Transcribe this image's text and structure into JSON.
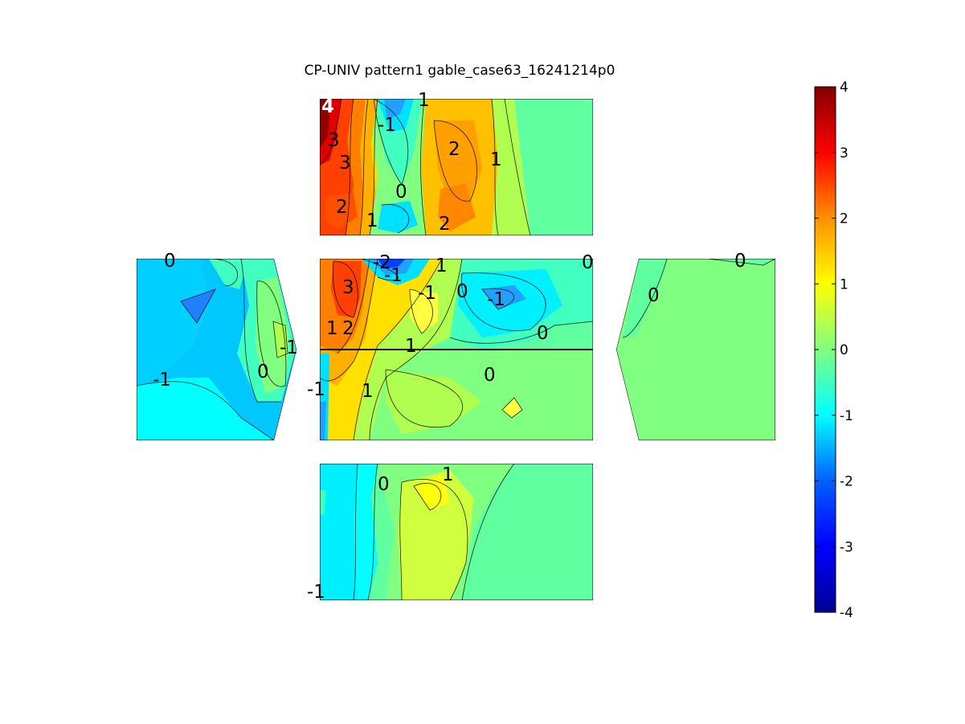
{
  "chart_data": {
    "type": "heatmap",
    "title": "CP-UNIV pattern1 gable_case63_16241214p0",
    "colorbar": {
      "colormap": "jet",
      "range": [
        -4,
        4
      ],
      "ticks": [
        "-4",
        "-3",
        "-2",
        "-1",
        "0",
        "1",
        "2",
        "3",
        "4"
      ]
    },
    "panels": [
      {
        "name": "top",
        "contour_labels": [
          {
            "text": "4",
            "highlight": true
          },
          {
            "text": "-1"
          },
          {
            "text": "1"
          },
          {
            "text": "3"
          },
          {
            "text": "3"
          },
          {
            "text": "2"
          },
          {
            "text": "1"
          },
          {
            "text": "0"
          },
          {
            "text": "2"
          },
          {
            "text": "1"
          },
          {
            "text": "2"
          }
        ]
      },
      {
        "name": "left",
        "contour_labels": [
          {
            "text": "0"
          },
          {
            "text": "-1"
          },
          {
            "text": "0"
          },
          {
            "text": "-1"
          }
        ]
      },
      {
        "name": "center",
        "contour_labels": [
          {
            "text": "-2"
          },
          {
            "text": "-1"
          },
          {
            "text": "1"
          },
          {
            "text": "0"
          },
          {
            "text": "3"
          },
          {
            "text": "-1"
          },
          {
            "text": "0"
          },
          {
            "text": "-1"
          },
          {
            "text": "1"
          },
          {
            "text": "2"
          },
          {
            "text": "0"
          },
          {
            "text": "1"
          },
          {
            "text": "0"
          },
          {
            "text": "-1"
          },
          {
            "text": "1"
          }
        ]
      },
      {
        "name": "right",
        "contour_labels": [
          {
            "text": "0"
          },
          {
            "text": "0"
          }
        ]
      },
      {
        "name": "bottom",
        "contour_labels": [
          {
            "text": "0"
          },
          {
            "text": "1"
          },
          {
            "text": "-1"
          }
        ]
      }
    ]
  },
  "colors": {
    "jet": [
      "#00008f",
      "#0000ff",
      "#0080ff",
      "#00ffff",
      "#80ff80",
      "#ffff00",
      "#ff8000",
      "#ff0000",
      "#800000"
    ]
  }
}
